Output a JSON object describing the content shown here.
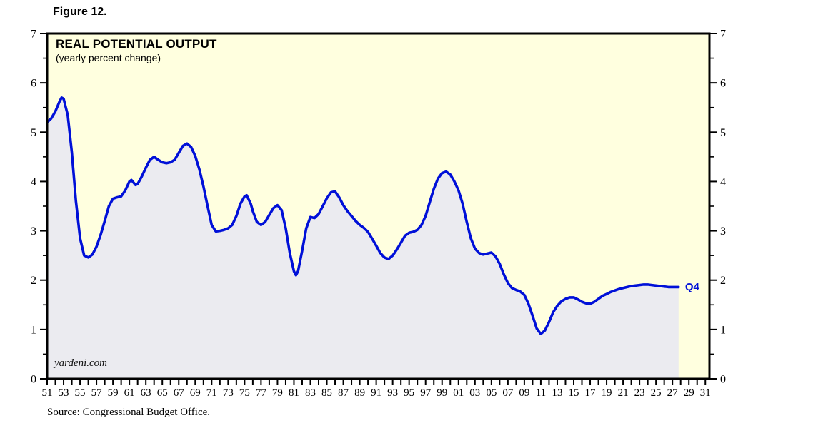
{
  "figure_label": "Figure 12.",
  "source": "Source: Congressional Budget Office.",
  "watermark": "yardeni.com",
  "chart": {
    "title": "REAL POTENTIAL OUTPUT",
    "subtitle": "(yearly percent change)",
    "end_label": "Q4"
  },
  "chart_data": {
    "type": "area",
    "title": "REAL POTENTIAL OUTPUT",
    "subtitle": "(yearly percent change)",
    "xlabel": "",
    "ylabel": "yearly percent change",
    "ylim": [
      0,
      7
    ],
    "x_range_years": [
      1951,
      2031.5
    ],
    "grid": false,
    "legend": "none",
    "y_ticks": [
      0,
      1,
      2,
      3,
      4,
      5,
      6,
      7
    ],
    "x_tick_labels": [
      "51",
      "53",
      "55",
      "57",
      "59",
      "61",
      "63",
      "65",
      "67",
      "69",
      "71",
      "73",
      "75",
      "77",
      "79",
      "81",
      "83",
      "85",
      "87",
      "89",
      "91",
      "93",
      "95",
      "97",
      "99",
      "01",
      "03",
      "05",
      "07",
      "09",
      "11",
      "13",
      "15",
      "17",
      "19",
      "21",
      "23",
      "25",
      "27",
      "29",
      "31"
    ],
    "end_label": "Q4",
    "colors": {
      "line": "#0010d8",
      "fill": "#ebebf0",
      "plot_bg": "#ffffdf",
      "axis": "#000000",
      "end_label": "#0010d8"
    },
    "points": [
      [
        1951.0,
        5.2
      ],
      [
        1951.5,
        5.28
      ],
      [
        1952.0,
        5.42
      ],
      [
        1952.5,
        5.62
      ],
      [
        1952.75,
        5.7
      ],
      [
        1953.0,
        5.68
      ],
      [
        1953.5,
        5.35
      ],
      [
        1954.0,
        4.6
      ],
      [
        1954.5,
        3.6
      ],
      [
        1955.0,
        2.85
      ],
      [
        1955.5,
        2.5
      ],
      [
        1956.0,
        2.46
      ],
      [
        1956.5,
        2.52
      ],
      [
        1957.0,
        2.68
      ],
      [
        1957.5,
        2.92
      ],
      [
        1958.0,
        3.2
      ],
      [
        1958.5,
        3.5
      ],
      [
        1959.0,
        3.65
      ],
      [
        1959.5,
        3.68
      ],
      [
        1960.0,
        3.7
      ],
      [
        1960.5,
        3.82
      ],
      [
        1961.0,
        4.0
      ],
      [
        1961.25,
        4.03
      ],
      [
        1961.75,
        3.93
      ],
      [
        1962.0,
        3.95
      ],
      [
        1962.5,
        4.1
      ],
      [
        1963.0,
        4.28
      ],
      [
        1963.5,
        4.44
      ],
      [
        1964.0,
        4.5
      ],
      [
        1964.5,
        4.44
      ],
      [
        1965.0,
        4.39
      ],
      [
        1965.5,
        4.37
      ],
      [
        1966.0,
        4.39
      ],
      [
        1966.5,
        4.44
      ],
      [
        1967.0,
        4.58
      ],
      [
        1967.5,
        4.72
      ],
      [
        1968.0,
        4.77
      ],
      [
        1968.5,
        4.7
      ],
      [
        1969.0,
        4.52
      ],
      [
        1969.5,
        4.25
      ],
      [
        1970.0,
        3.9
      ],
      [
        1970.5,
        3.5
      ],
      [
        1971.0,
        3.12
      ],
      [
        1971.5,
        2.99
      ],
      [
        1972.0,
        3.0
      ],
      [
        1972.5,
        3.02
      ],
      [
        1973.0,
        3.05
      ],
      [
        1973.5,
        3.12
      ],
      [
        1974.0,
        3.3
      ],
      [
        1974.5,
        3.55
      ],
      [
        1975.0,
        3.7
      ],
      [
        1975.25,
        3.72
      ],
      [
        1975.75,
        3.55
      ],
      [
        1976.0,
        3.4
      ],
      [
        1976.5,
        3.18
      ],
      [
        1977.0,
        3.12
      ],
      [
        1977.5,
        3.18
      ],
      [
        1978.0,
        3.32
      ],
      [
        1978.5,
        3.46
      ],
      [
        1979.0,
        3.52
      ],
      [
        1979.5,
        3.42
      ],
      [
        1980.0,
        3.05
      ],
      [
        1980.5,
        2.55
      ],
      [
        1981.0,
        2.18
      ],
      [
        1981.25,
        2.1
      ],
      [
        1981.5,
        2.18
      ],
      [
        1982.0,
        2.6
      ],
      [
        1982.5,
        3.05
      ],
      [
        1983.0,
        3.28
      ],
      [
        1983.5,
        3.26
      ],
      [
        1984.0,
        3.34
      ],
      [
        1984.5,
        3.5
      ],
      [
        1985.0,
        3.66
      ],
      [
        1985.5,
        3.78
      ],
      [
        1986.0,
        3.8
      ],
      [
        1986.5,
        3.68
      ],
      [
        1987.0,
        3.52
      ],
      [
        1987.5,
        3.4
      ],
      [
        1988.0,
        3.3
      ],
      [
        1988.5,
        3.2
      ],
      [
        1989.0,
        3.12
      ],
      [
        1989.5,
        3.06
      ],
      [
        1990.0,
        2.98
      ],
      [
        1990.5,
        2.84
      ],
      [
        1991.0,
        2.7
      ],
      [
        1991.5,
        2.55
      ],
      [
        1992.0,
        2.46
      ],
      [
        1992.5,
        2.43
      ],
      [
        1993.0,
        2.5
      ],
      [
        1993.5,
        2.62
      ],
      [
        1994.0,
        2.76
      ],
      [
        1994.5,
        2.9
      ],
      [
        1995.0,
        2.96
      ],
      [
        1995.5,
        2.98
      ],
      [
        1996.0,
        3.02
      ],
      [
        1996.5,
        3.12
      ],
      [
        1997.0,
        3.3
      ],
      [
        1997.5,
        3.58
      ],
      [
        1998.0,
        3.85
      ],
      [
        1998.5,
        4.06
      ],
      [
        1999.0,
        4.17
      ],
      [
        1999.5,
        4.2
      ],
      [
        2000.0,
        4.14
      ],
      [
        2000.5,
        4.0
      ],
      [
        2001.0,
        3.82
      ],
      [
        2001.5,
        3.55
      ],
      [
        2002.0,
        3.18
      ],
      [
        2002.5,
        2.85
      ],
      [
        2003.0,
        2.64
      ],
      [
        2003.5,
        2.55
      ],
      [
        2004.0,
        2.52
      ],
      [
        2004.5,
        2.54
      ],
      [
        2005.0,
        2.56
      ],
      [
        2005.5,
        2.48
      ],
      [
        2006.0,
        2.33
      ],
      [
        2006.5,
        2.12
      ],
      [
        2007.0,
        1.94
      ],
      [
        2007.5,
        1.84
      ],
      [
        2008.0,
        1.8
      ],
      [
        2008.5,
        1.77
      ],
      [
        2009.0,
        1.7
      ],
      [
        2009.5,
        1.52
      ],
      [
        2010.0,
        1.28
      ],
      [
        2010.5,
        1.02
      ],
      [
        2011.0,
        0.91
      ],
      [
        2011.5,
        0.98
      ],
      [
        2012.0,
        1.15
      ],
      [
        2012.5,
        1.35
      ],
      [
        2013.0,
        1.48
      ],
      [
        2013.5,
        1.57
      ],
      [
        2014.0,
        1.62
      ],
      [
        2014.5,
        1.65
      ],
      [
        2015.0,
        1.65
      ],
      [
        2015.5,
        1.61
      ],
      [
        2016.0,
        1.56
      ],
      [
        2016.5,
        1.53
      ],
      [
        2017.0,
        1.52
      ],
      [
        2017.5,
        1.56
      ],
      [
        2018.0,
        1.62
      ],
      [
        2018.5,
        1.68
      ],
      [
        2019.0,
        1.72
      ],
      [
        2019.5,
        1.76
      ],
      [
        2020.0,
        1.79
      ],
      [
        2020.5,
        1.82
      ],
      [
        2021.0,
        1.84
      ],
      [
        2021.5,
        1.86
      ],
      [
        2022.0,
        1.88
      ],
      [
        2022.5,
        1.89
      ],
      [
        2023.0,
        1.9
      ],
      [
        2023.5,
        1.91
      ],
      [
        2024.0,
        1.91
      ],
      [
        2024.5,
        1.9
      ],
      [
        2025.0,
        1.89
      ],
      [
        2025.5,
        1.88
      ],
      [
        2026.0,
        1.87
      ],
      [
        2026.5,
        1.86
      ],
      [
        2027.0,
        1.86
      ],
      [
        2027.5,
        1.86
      ],
      [
        2027.75,
        1.86
      ]
    ]
  }
}
